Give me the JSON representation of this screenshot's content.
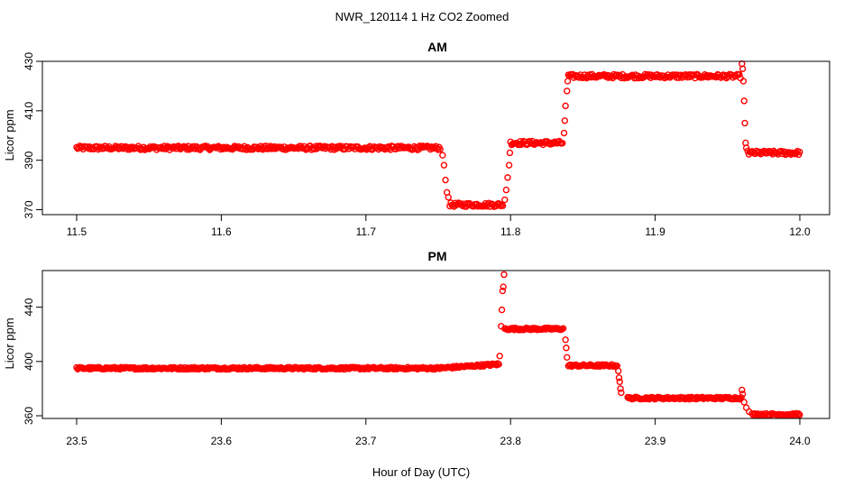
{
  "figure": {
    "title": "NWR_120114  1 Hz CO2 Zoomed",
    "xlabel": "Hour of Day (UTC)"
  },
  "colors": {
    "points": "#ff0000",
    "axes": "#000000",
    "background": "#ffffff"
  },
  "chart_data": [
    {
      "type": "scatter",
      "title": "AM",
      "xlabel": "",
      "ylabel": "Licor ppm",
      "xlim": [
        11.5,
        12.0
      ],
      "ylim": [
        368,
        430
      ],
      "xticks": [
        "11.5",
        "11.6",
        "11.7",
        "11.8",
        "11.9",
        "12.0"
      ],
      "yticks": [
        "370",
        "390",
        "410",
        "430"
      ],
      "grid": false,
      "segments": [
        {
          "x_start": 11.5,
          "x_end": 11.752,
          "y": 395
        },
        {
          "x_start": 11.758,
          "x_end": 11.795,
          "y": 372
        },
        {
          "x_start": 11.8,
          "x_end": 11.836,
          "y": 397
        },
        {
          "x_start": 11.84,
          "x_end": 11.959,
          "y": 424
        },
        {
          "x_start": 11.964,
          "x_end": 12.0,
          "y": 393
        }
      ],
      "transitions": [
        {
          "x": 11.753,
          "y": 392
        },
        {
          "x": 11.754,
          "y": 388
        },
        {
          "x": 11.755,
          "y": 382
        },
        {
          "x": 11.756,
          "y": 377
        },
        {
          "x": 11.757,
          "y": 375
        },
        {
          "x": 11.796,
          "y": 374
        },
        {
          "x": 11.797,
          "y": 378
        },
        {
          "x": 11.798,
          "y": 383
        },
        {
          "x": 11.799,
          "y": 388
        },
        {
          "x": 11.7995,
          "y": 393
        },
        {
          "x": 11.837,
          "y": 401
        },
        {
          "x": 11.8375,
          "y": 406
        },
        {
          "x": 11.838,
          "y": 412
        },
        {
          "x": 11.839,
          "y": 418
        },
        {
          "x": 11.8395,
          "y": 422
        },
        {
          "x": 11.96,
          "y": 429
        },
        {
          "x": 11.9605,
          "y": 427
        },
        {
          "x": 11.961,
          "y": 422
        },
        {
          "x": 11.9615,
          "y": 414
        },
        {
          "x": 11.962,
          "y": 405
        },
        {
          "x": 11.9625,
          "y": 397
        },
        {
          "x": 11.963,
          "y": 395
        }
      ]
    },
    {
      "type": "scatter",
      "title": "PM",
      "xlabel": "",
      "ylabel": "Licor ppm",
      "xlim": [
        23.5,
        24.0
      ],
      "ylim": [
        358,
        467
      ],
      "xticks": [
        "23.5",
        "23.6",
        "23.7",
        "23.8",
        "23.9",
        "24.0"
      ],
      "yticks": [
        "360",
        "400",
        "440"
      ],
      "grid": false,
      "segments": [
        {
          "x_start": 23.5,
          "x_end": 23.75,
          "y": 395,
          "y_end": 395
        },
        {
          "x_start": 23.75,
          "x_end": 23.792,
          "y": 395,
          "y_end": 398
        },
        {
          "x_start": 23.796,
          "x_end": 23.837,
          "y": 424
        },
        {
          "x_start": 23.84,
          "x_end": 23.874,
          "y": 397
        },
        {
          "x_start": 23.881,
          "x_end": 23.96,
          "y": 373
        },
        {
          "x_start": 23.967,
          "x_end": 24.0,
          "y": 361
        }
      ],
      "transitions": [
        {
          "x": 23.7925,
          "y": 404
        },
        {
          "x": 23.7935,
          "y": 426
        },
        {
          "x": 23.794,
          "y": 438
        },
        {
          "x": 23.7945,
          "y": 452
        },
        {
          "x": 23.795,
          "y": 455
        },
        {
          "x": 23.7955,
          "y": 464
        },
        {
          "x": 23.838,
          "y": 416
        },
        {
          "x": 23.8385,
          "y": 410
        },
        {
          "x": 23.839,
          "y": 403
        },
        {
          "x": 23.8745,
          "y": 393
        },
        {
          "x": 23.875,
          "y": 388
        },
        {
          "x": 23.8755,
          "y": 385
        },
        {
          "x": 23.876,
          "y": 380
        },
        {
          "x": 23.8765,
          "y": 377
        },
        {
          "x": 23.96,
          "y": 379
        },
        {
          "x": 23.9605,
          "y": 376
        },
        {
          "x": 23.9615,
          "y": 370
        },
        {
          "x": 23.963,
          "y": 366
        },
        {
          "x": 23.965,
          "y": 363
        }
      ]
    }
  ]
}
